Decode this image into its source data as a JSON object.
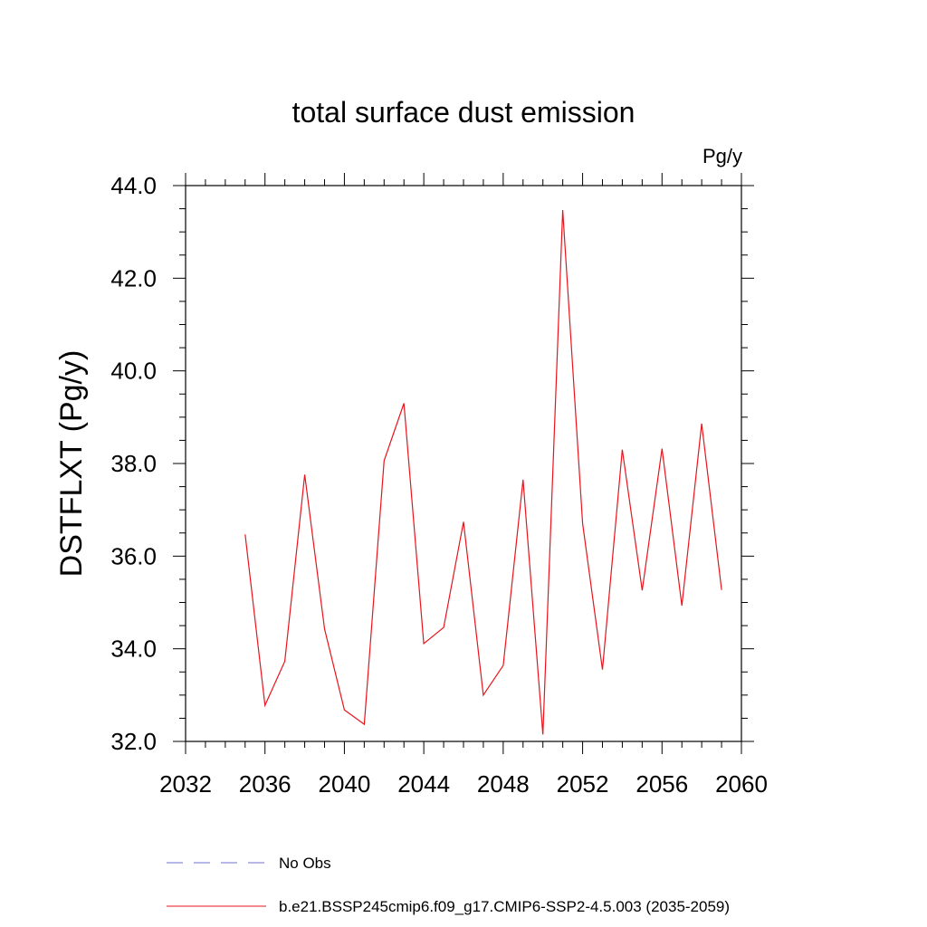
{
  "chart_data": {
    "type": "line",
    "title": "total surface dust emission",
    "units": "Pg/y",
    "xlabel": "",
    "ylabel": "DSTFLXT  (Pg/y)",
    "xlim": [
      2032,
      2060
    ],
    "ylim": [
      32.0,
      44.0
    ],
    "x_ticks": [
      "2032",
      "2036",
      "2040",
      "2044",
      "2048",
      "2052",
      "2056",
      "2060"
    ],
    "y_ticks": [
      "32.0",
      "34.0",
      "36.0",
      "38.0",
      "40.0",
      "42.0",
      "44.0"
    ],
    "series": [
      {
        "name": "b.e21.BSSP245cmip6.f09_g17.CMIP6-SSP2-4.5.003 (2035-2059)",
        "color": "#e8141c",
        "dash": "solid",
        "x": [
          2035,
          2036,
          2037,
          2038,
          2039,
          2040,
          2041,
          2042,
          2043,
          2044,
          2045,
          2046,
          2047,
          2048,
          2049,
          2050,
          2051,
          2052,
          2053,
          2054,
          2055,
          2056,
          2057,
          2058,
          2059
        ],
        "y": [
          36.47,
          32.78,
          33.73,
          37.76,
          34.43,
          32.68,
          32.37,
          38.06,
          39.3,
          34.11,
          34.46,
          36.74,
          33.0,
          33.64,
          37.65,
          32.15,
          43.47,
          36.7,
          33.55,
          38.3,
          35.26,
          38.32,
          34.93,
          38.86,
          35.27
        ]
      }
    ],
    "legend": [
      {
        "label": "No Obs",
        "color": "#6f6fd6",
        "dash": "dashed"
      },
      {
        "label": "b.e21.BSSP245cmip6.f09_g17.CMIP6-SSP2-4.5.003 (2035-2059)",
        "color": "#e8141c",
        "dash": "solid"
      }
    ],
    "legend_position": "bottom"
  }
}
